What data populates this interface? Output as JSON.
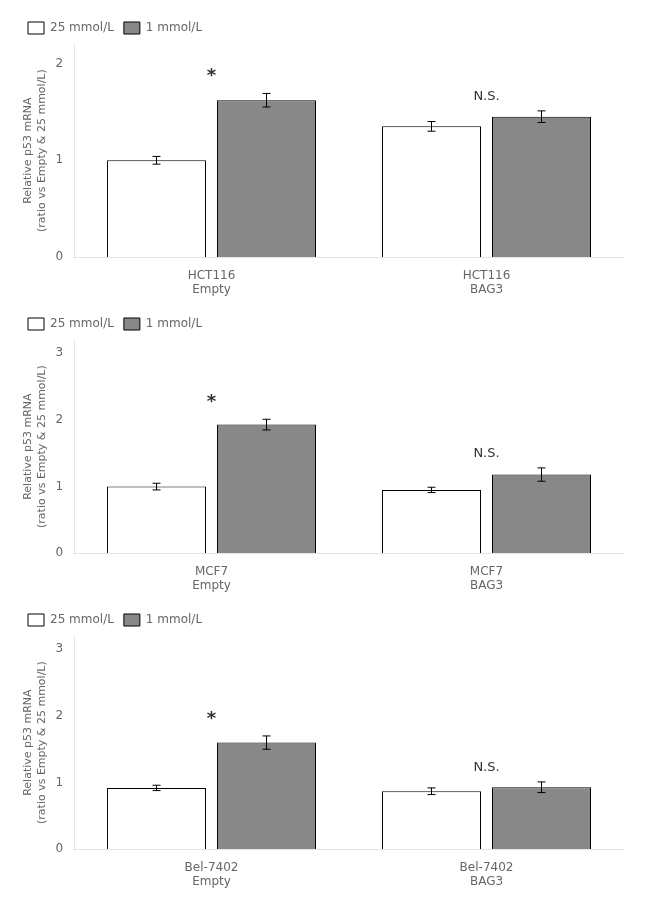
{
  "chart_data": [
    {
      "type": "bar",
      "categories": [
        "HCT116\nEmpty",
        "HCT116\nBAG3"
      ],
      "series": [
        {
          "name": "25 mmol/L",
          "color": "#FFFFFF",
          "values": [
            1.0,
            1.35
          ],
          "errors": [
            0.04,
            0.05
          ]
        },
        {
          "name": "1 mmol/L",
          "color": "#888888",
          "values": [
            1.62,
            1.45
          ],
          "errors": [
            0.07,
            0.06
          ]
        }
      ],
      "ylabel": "Relative p53 mRNA\n(ratio vs Empty & 25 mmol/L)",
      "ylim": [
        0,
        2.2
      ],
      "yticks": [
        0,
        1,
        2
      ],
      "annotations": [
        {
          "category": "HCT116\nEmpty",
          "text": "*"
        },
        {
          "category": "HCT116\nBAG3",
          "text": "N.S."
        }
      ],
      "legend": "upper left",
      "grid": false
    },
    {
      "type": "bar",
      "categories": [
        "MCF7\nEmpty",
        "MCF7\nBAG3"
      ],
      "series": [
        {
          "name": "25 mmol/L",
          "color": "#FFFFFF",
          "values": [
            1.0,
            0.95
          ],
          "errors": [
            0.05,
            0.04
          ]
        },
        {
          "name": "1 mmol/L",
          "color": "#888888",
          "values": [
            1.93,
            1.18
          ],
          "errors": [
            0.08,
            0.1
          ]
        }
      ],
      "ylabel": "Relative p53 mRNA\n(ratio vs Empty & 25 mmol/L)",
      "ylim": [
        0,
        3.2
      ],
      "yticks": [
        0,
        1,
        2,
        3
      ],
      "annotations": [
        {
          "category": "MCF7\nEmpty",
          "text": "*"
        },
        {
          "category": "MCF7\nBAG3",
          "text": "N.S."
        }
      ],
      "legend": "upper left",
      "grid": false
    },
    {
      "type": "bar",
      "categories": [
        "Bel-7402\nEmpty",
        "Bel-7402\nBAG3"
      ],
      "series": [
        {
          "name": "25 mmol/L",
          "color": "#FFFFFF",
          "values": [
            0.92,
            0.87
          ],
          "errors": [
            0.04,
            0.05
          ]
        },
        {
          "name": "1 mmol/L",
          "color": "#888888",
          "values": [
            1.6,
            0.93
          ],
          "errors": [
            0.1,
            0.08
          ]
        }
      ],
      "ylabel": "Relative p53 mRNA\n(ratio vs Empty & 25 mmol/L)",
      "ylim": [
        0,
        3.2
      ],
      "yticks": [
        0,
        1,
        2,
        3
      ],
      "annotations": [
        {
          "category": "Bel-7402\nEmpty",
          "text": "*"
        },
        {
          "category": "Bel-7402\nBAG3",
          "text": "N.S."
        }
      ],
      "legend": "upper left",
      "grid": false
    }
  ]
}
